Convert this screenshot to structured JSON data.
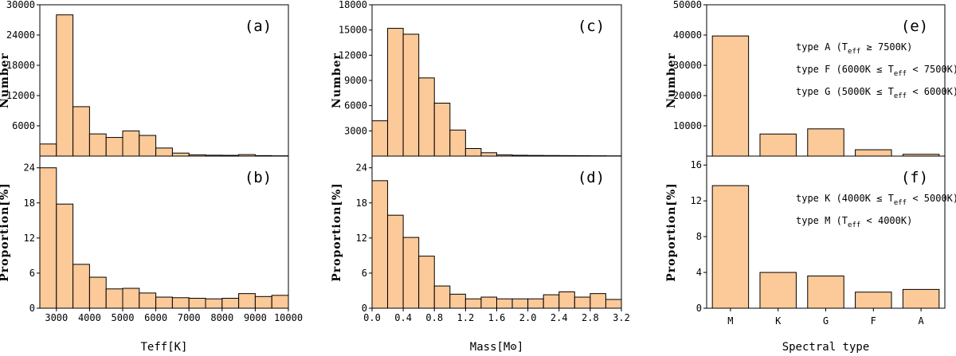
{
  "chart_data": [
    {
      "id": "a",
      "type": "bar",
      "panel_label": "(a)",
      "ylabel": "Number",
      "xlabel": "Teff[K]",
      "xlim": [
        2500,
        10000
      ],
      "ylim": [
        0,
        30000
      ],
      "xticks": [
        "3000",
        "4000",
        "5000",
        "6000",
        "7000",
        "8000",
        "9000",
        "10000"
      ],
      "yticks": [
        "6000",
        "12000",
        "18000",
        "24000",
        "30000"
      ],
      "bin_edges": [
        2500,
        3000,
        3500,
        4000,
        4500,
        5000,
        5500,
        6000,
        6500,
        7000,
        7500,
        8000,
        8500,
        9000,
        9500,
        10000
      ],
      "values": [
        2400,
        28000,
        9800,
        4400,
        3700,
        5000,
        4100,
        1600,
        600,
        250,
        180,
        150,
        300,
        100,
        60
      ]
    },
    {
      "id": "b",
      "type": "bar",
      "panel_label": "(b)",
      "ylabel": "Proportion[%]",
      "xlabel": "Teff[K]",
      "xlim": [
        2500,
        10000
      ],
      "ylim": [
        0,
        26
      ],
      "xticks": [
        "3000",
        "4000",
        "5000",
        "6000",
        "7000",
        "8000",
        "9000",
        "10000"
      ],
      "yticks": [
        "0",
        "6",
        "12",
        "18",
        "24"
      ],
      "bin_edges": [
        2500,
        3000,
        3500,
        4000,
        4500,
        5000,
        5500,
        6000,
        6500,
        7000,
        7500,
        8000,
        8500,
        9000,
        9500,
        10000
      ],
      "values": [
        24,
        17.8,
        7.5,
        5.3,
        3.3,
        3.4,
        2.6,
        1.9,
        1.8,
        1.7,
        1.6,
        1.7,
        2.5,
        2.0,
        2.2
      ]
    },
    {
      "id": "c",
      "type": "bar",
      "panel_label": "(c)",
      "ylabel": "Number",
      "xlabel": "Mass[Mʘ]",
      "xlim": [
        0,
        3.2
      ],
      "ylim": [
        0,
        18000
      ],
      "xticks": [
        "0.0",
        "0.4",
        "0.8",
        "1.2",
        "1.6",
        "2.0",
        "2.4",
        "2.8",
        "3.2"
      ],
      "yticks": [
        "3000",
        "6000",
        "9000",
        "12000",
        "15000",
        "18000"
      ],
      "bin_edges": [
        0,
        0.2,
        0.4,
        0.6,
        0.8,
        1.0,
        1.2,
        1.4,
        1.6,
        1.8,
        2.0,
        2.2,
        2.4,
        2.6,
        2.8,
        3.0,
        3.2
      ],
      "values": [
        4200,
        15200,
        14500,
        9300,
        6300,
        3100,
        900,
        400,
        150,
        100,
        80,
        70,
        60,
        50,
        40,
        30
      ]
    },
    {
      "id": "d",
      "type": "bar",
      "panel_label": "(d)",
      "ylabel": "Proportion[%]",
      "xlabel": "Mass[Mʘ]",
      "xlim": [
        0,
        3.2
      ],
      "ylim": [
        0,
        26
      ],
      "xticks": [
        "0.0",
        "0.4",
        "0.8",
        "1.2",
        "1.6",
        "2.0",
        "2.4",
        "2.8",
        "3.2"
      ],
      "yticks": [
        "0",
        "6",
        "12",
        "18",
        "24"
      ],
      "bin_edges": [
        0,
        0.2,
        0.4,
        0.6,
        0.8,
        1.0,
        1.2,
        1.4,
        1.6,
        1.8,
        2.0,
        2.2,
        2.4,
        2.6,
        2.8,
        3.0,
        3.2
      ],
      "values": [
        21.8,
        15.9,
        12.1,
        8.9,
        3.8,
        2.4,
        1.6,
        1.9,
        1.6,
        1.6,
        1.6,
        2.3,
        2.8,
        1.9,
        2.5,
        1.5
      ]
    },
    {
      "id": "e",
      "type": "bar",
      "panel_label": "(e)",
      "ylabel": "Number",
      "xlabel": "Spectral type",
      "ylim": [
        0,
        50000
      ],
      "categories": [
        "M",
        "K",
        "G",
        "F",
        "A"
      ],
      "yticks": [
        "10000",
        "20000",
        "30000",
        "40000",
        "50000"
      ],
      "values": [
        39700,
        7300,
        9000,
        2100,
        600
      ],
      "annotations": [
        {
          "pre": "type A (T",
          "sub": "eff",
          "post": " ≥ 7500K)"
        },
        {
          "pre": "type F (6000K ≤ T",
          "sub": "eff",
          "post": " < 7500K)"
        },
        {
          "pre": "type G (5000K ≤ T",
          "sub": "eff",
          "post": " < 6000K)"
        }
      ]
    },
    {
      "id": "f",
      "type": "bar",
      "panel_label": "(f)",
      "ylabel": "Proportion[%]",
      "xlabel": "Spectral type",
      "ylim": [
        0,
        17
      ],
      "categories": [
        "M",
        "K",
        "G",
        "F",
        "A"
      ],
      "yticks": [
        "0",
        "4",
        "8",
        "12",
        "16"
      ],
      "values": [
        13.7,
        4.0,
        3.6,
        1.8,
        2.1
      ],
      "annotations": [
        {
          "pre": "type K (4000K ≤ T",
          "sub": "eff",
          "post": " < 5000K)"
        },
        {
          "pre": "type M (T",
          "sub": "eff",
          "post": " < 4000K)"
        }
      ]
    }
  ],
  "colors": {
    "bar_fill": "#FCC998",
    "bar_stroke": "#000000"
  }
}
